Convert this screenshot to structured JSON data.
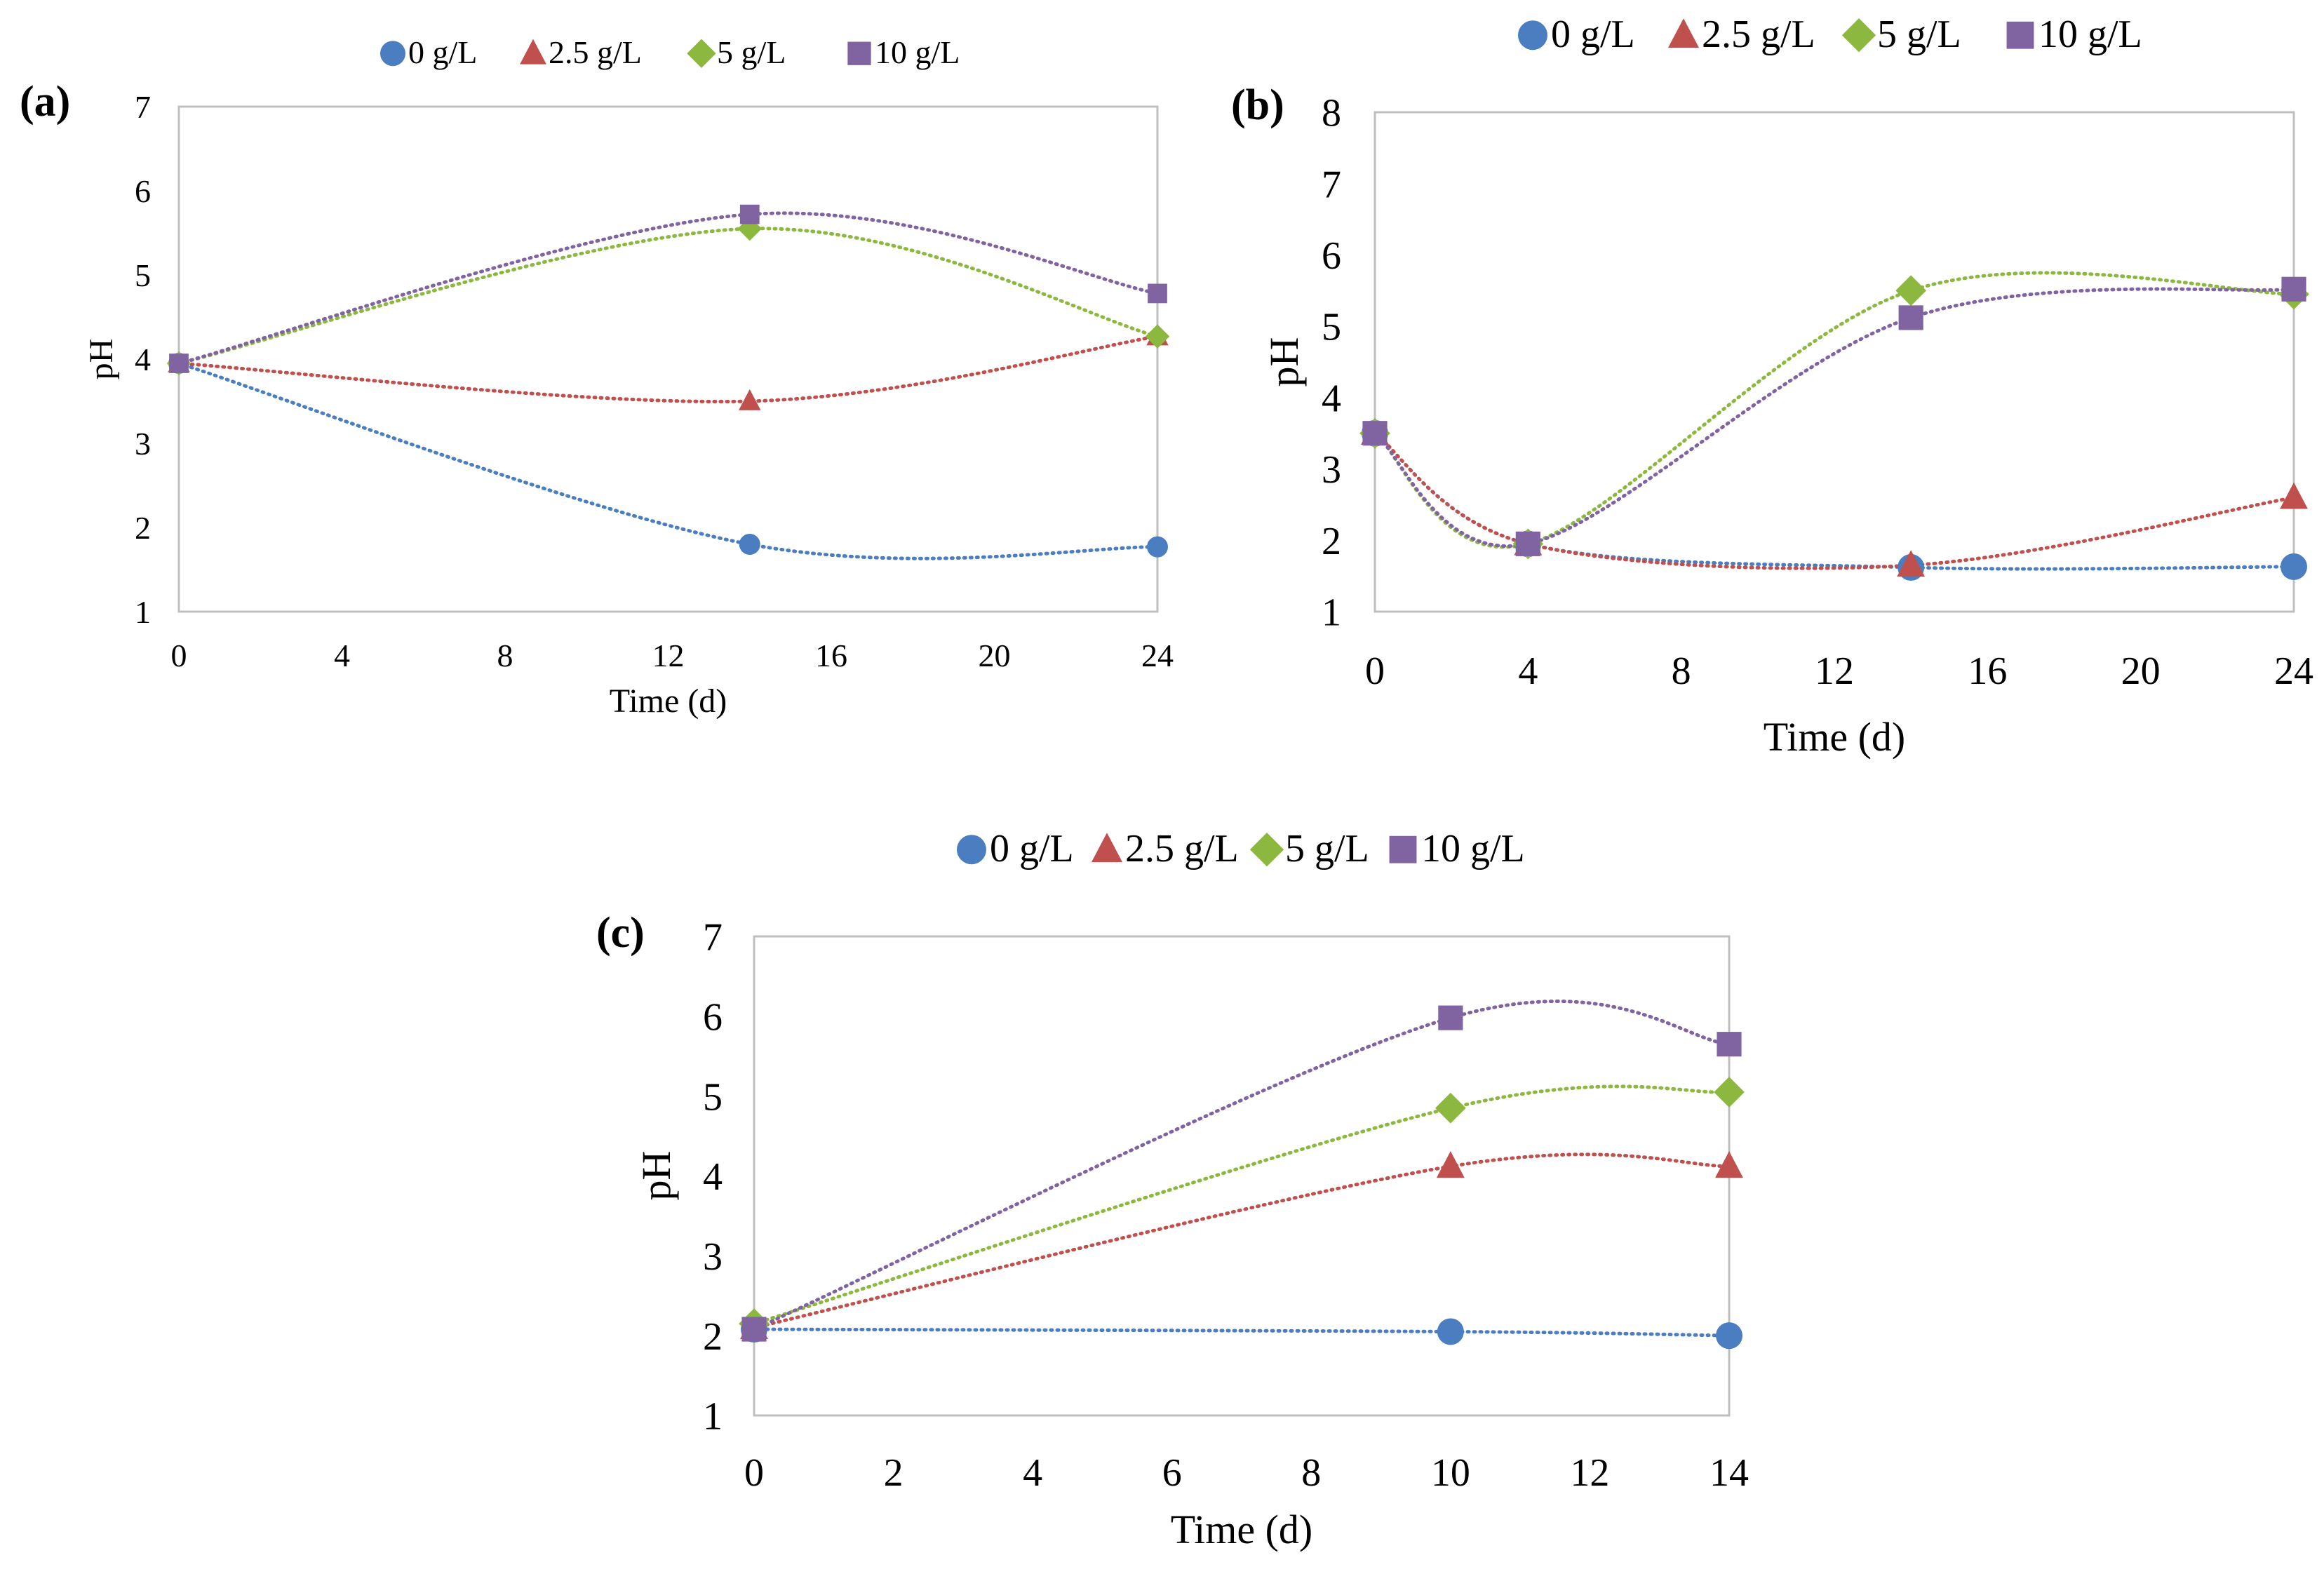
{
  "colors": {
    "0 g/L": "#4A7EC0",
    "2.5 g/L": "#C0504D",
    "5 g/L": "#8DB83F",
    "10 g/L": "#8064A2",
    "frame": "#bfbfbf"
  },
  "chart_data": [
    {
      "type": "scatter",
      "panel": "(a)",
      "title": "",
      "xlabel": "Time (d)",
      "ylabel": "pH",
      "xlim": [
        0,
        24
      ],
      "ylim": [
        1,
        7
      ],
      "xticks": [
        "0",
        "4",
        "8",
        "12",
        "16",
        "20",
        "24"
      ],
      "yticks": [
        "1",
        "2",
        "3",
        "4",
        "5",
        "6",
        "7"
      ],
      "grid": false,
      "legend": "top",
      "series": [
        {
          "name": "0 g/L",
          "marker": "circle",
          "x": [
            0,
            14,
            24
          ],
          "y": [
            3.95,
            1.8,
            1.77
          ]
        },
        {
          "name": "2.5 g/L",
          "marker": "triangle",
          "x": [
            0,
            14,
            24
          ],
          "y": [
            3.95,
            3.5,
            4.27
          ]
        },
        {
          "name": "5 g/L",
          "marker": "diamond",
          "x": [
            0,
            14,
            24
          ],
          "y": [
            3.95,
            5.55,
            4.27
          ]
        },
        {
          "name": "10 g/L",
          "marker": "square",
          "x": [
            0,
            14,
            24
          ],
          "y": [
            3.95,
            5.72,
            4.78
          ]
        }
      ]
    },
    {
      "type": "scatter",
      "panel": "(b)",
      "title": "",
      "xlabel": "Time (d)",
      "ylabel": "pH",
      "xlim": [
        0,
        24
      ],
      "ylim": [
        1,
        8
      ],
      "xticks": [
        "0",
        "4",
        "8",
        "12",
        "16",
        "20",
        "24"
      ],
      "yticks": [
        "1",
        "2",
        "3",
        "4",
        "5",
        "6",
        "7",
        "8"
      ],
      "grid": false,
      "legend": "top",
      "series": [
        {
          "name": "0 g/L",
          "marker": "circle",
          "x": [
            0,
            4,
            14,
            24
          ],
          "y": [
            3.5,
            1.95,
            1.62,
            1.63
          ]
        },
        {
          "name": "2.5 g/L",
          "marker": "triangle",
          "x": [
            0,
            4,
            14,
            24
          ],
          "y": [
            3.5,
            1.95,
            1.65,
            2.6
          ]
        },
        {
          "name": "5 g/L",
          "marker": "diamond",
          "x": [
            0,
            4,
            14,
            24
          ],
          "y": [
            3.5,
            1.95,
            5.5,
            5.45
          ]
        },
        {
          "name": "10 g/L",
          "marker": "square",
          "x": [
            0,
            4,
            14,
            24
          ],
          "y": [
            3.5,
            1.95,
            5.12,
            5.52
          ]
        }
      ]
    },
    {
      "type": "scatter",
      "panel": "(c)",
      "title": "",
      "xlabel": "Time (d)",
      "ylabel": "pH",
      "xlim": [
        0,
        14
      ],
      "ylim": [
        1,
        7
      ],
      "xticks": [
        "0",
        "2",
        "4",
        "6",
        "8",
        "10",
        "12",
        "14"
      ],
      "yticks": [
        "1",
        "2",
        "3",
        "4",
        "5",
        "6",
        "7"
      ],
      "grid": false,
      "legend": "top",
      "series": [
        {
          "name": "0 g/L",
          "marker": "circle",
          "x": [
            0,
            10,
            14
          ],
          "y": [
            2.08,
            2.05,
            2.0
          ]
        },
        {
          "name": "2.5 g/L",
          "marker": "triangle",
          "x": [
            0,
            10,
            14
          ],
          "y": [
            2.1,
            4.12,
            4.12
          ]
        },
        {
          "name": "5 g/L",
          "marker": "diamond",
          "x": [
            0,
            10,
            14
          ],
          "y": [
            2.15,
            4.85,
            5.05
          ]
        },
        {
          "name": "10 g/L",
          "marker": "square",
          "x": [
            0,
            10,
            14
          ],
          "y": [
            2.08,
            5.98,
            5.65
          ]
        }
      ]
    }
  ]
}
